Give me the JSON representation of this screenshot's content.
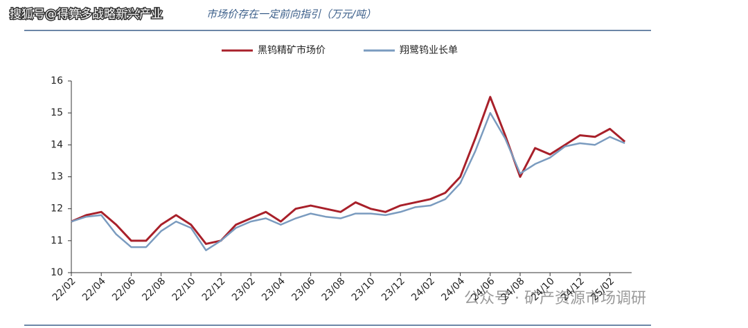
{
  "chart_data": {
    "type": "line",
    "title": "市场价存在一定前向指引（万元/吨）",
    "watermarks": [
      "搜狐号@得算多战略新兴产业",
      "公众号 · 矿产资源市场调研"
    ],
    "categories": [
      "22/02",
      null,
      "22/04",
      null,
      "22/06",
      null,
      "22/08",
      null,
      "22/10",
      null,
      "22/12",
      null,
      "23/02",
      null,
      "23/04",
      null,
      "23/06",
      null,
      "23/08",
      null,
      "23/10",
      null,
      "23/12",
      null,
      "24/02",
      null,
      "24/04",
      null,
      "24/06",
      null,
      "24/08",
      null,
      "24/10",
      null,
      "24/12",
      null,
      "25/02",
      null
    ],
    "series": [
      {
        "name": "黑钨精矿市场价",
        "color": "#a8202a",
        "values": [
          11.6,
          11.8,
          11.9,
          11.5,
          11.0,
          11.0,
          11.5,
          11.8,
          11.5,
          10.9,
          11.0,
          11.5,
          11.7,
          11.9,
          11.6,
          12.0,
          12.1,
          12.0,
          11.9,
          12.2,
          12.0,
          11.9,
          12.1,
          12.2,
          12.3,
          12.5,
          13.0,
          14.2,
          15.5,
          14.3,
          13.0,
          13.9,
          13.7,
          14.0,
          14.3,
          14.25,
          14.5,
          14.1
        ]
      },
      {
        "name": "翔鹭钨业长单",
        "color": "#7a9bbf",
        "values": [
          11.6,
          11.75,
          11.8,
          11.2,
          10.8,
          10.8,
          11.3,
          11.6,
          11.4,
          10.7,
          11.0,
          11.4,
          11.6,
          11.7,
          11.5,
          11.7,
          11.85,
          11.75,
          11.7,
          11.85,
          11.85,
          11.8,
          11.9,
          12.05,
          12.1,
          12.3,
          12.8,
          13.8,
          15.0,
          14.2,
          13.1,
          13.4,
          13.6,
          13.95,
          14.05,
          14.0,
          14.25,
          14.05
        ]
      }
    ],
    "ylim": [
      10,
      16
    ],
    "yticks": [
      10,
      11,
      12,
      13,
      14,
      15,
      16
    ],
    "legend": "top"
  }
}
